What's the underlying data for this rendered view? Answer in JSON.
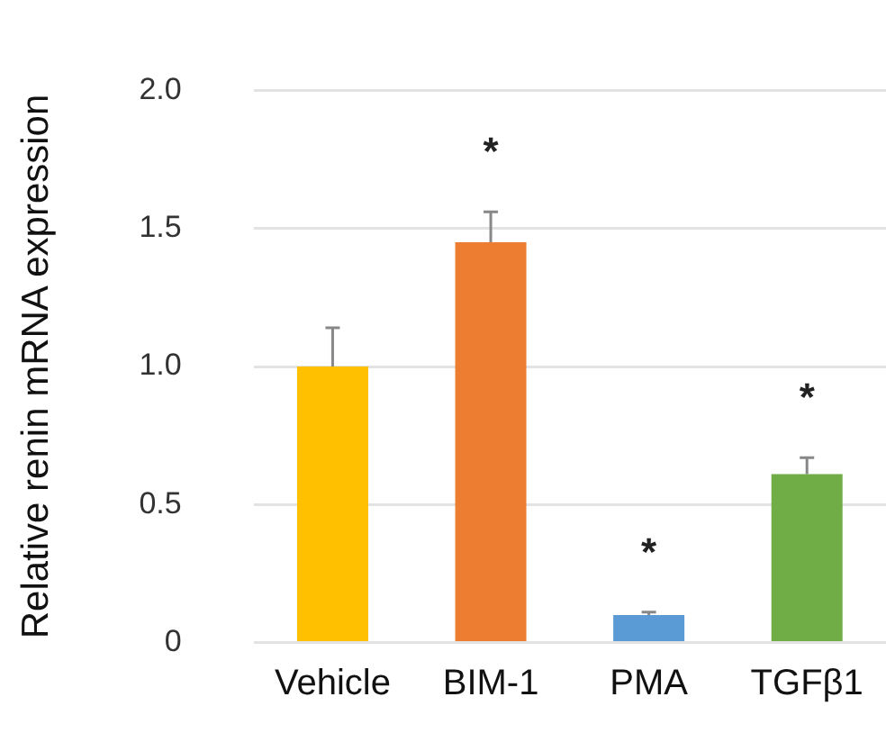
{
  "chart_data": {
    "type": "bar",
    "ylabel": "Relative renin mRNA expression",
    "categories": [
      "Vehicle",
      "BIM-1",
      "PMA",
      "TGFβ1"
    ],
    "values": [
      1.0,
      1.45,
      0.1,
      0.61
    ],
    "colors": [
      "#ffc000",
      "#ed7d31",
      "#5b9bd5",
      "#70ad47"
    ],
    "errors": [
      [
        1.0,
        1.14
      ],
      [
        1.45,
        1.56
      ],
      [
        0.1,
        0.11
      ],
      [
        0.61,
        0.67
      ]
    ],
    "value_labels": [
      null,
      "*",
      "*",
      "*"
    ],
    "ylim": [
      0,
      2
    ],
    "yticks": [
      0,
      {
        "value": 0.5,
        "label": "0.5"
      },
      {
        "value": 1,
        "label": "1.0"
      },
      {
        "value": 1.5,
        "label": "1.5"
      },
      {
        "value": 2,
        "label": "2.0"
      }
    ],
    "grid": "y",
    "legend": false
  }
}
